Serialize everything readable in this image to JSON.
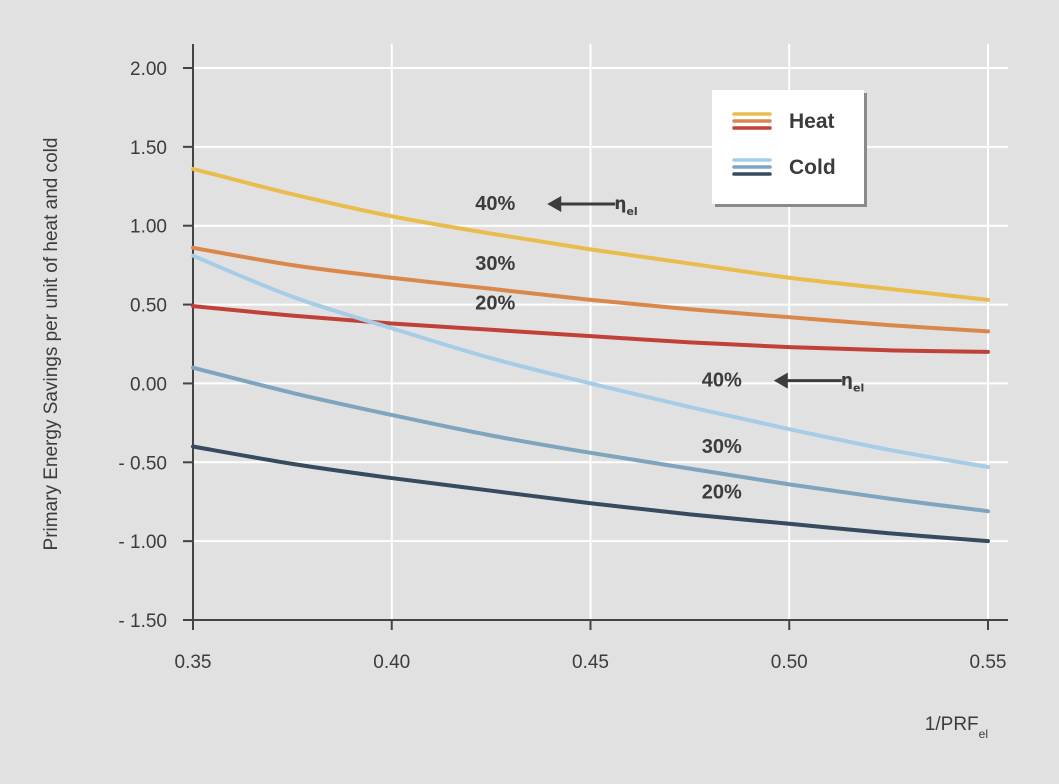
{
  "chart_data": {
    "type": "line",
    "title": "",
    "xlabel": "1/PRF",
    "xlabel_sub": "el",
    "ylabel": "Primary Energy Savings per unit of heat and cold",
    "xlim": [
      0.35,
      0.55
    ],
    "ylim": [
      -1.5,
      2.0
    ],
    "x_ticks": [
      0.35,
      0.4,
      0.45,
      0.5,
      0.55
    ],
    "x_tick_labels": [
      "0.35",
      "0.40",
      "0.45",
      "0.50",
      "0.55"
    ],
    "y_ticks": [
      2.0,
      1.5,
      1.0,
      0.5,
      0.0,
      -0.5,
      -1.0,
      -1.5
    ],
    "y_tick_labels": [
      "2.00",
      "1.50",
      "1.00",
      "0.50",
      "0.00",
      "- 0.50",
      "- 1.00",
      "- 1.50"
    ],
    "grid": true,
    "x": [
      0.35,
      0.375,
      0.4,
      0.425,
      0.45,
      0.475,
      0.5,
      0.525,
      0.55
    ],
    "series": [
      {
        "name": "Heat 40%",
        "group": "Heat",
        "eta_el": "40%",
        "color": "#e8bd4e",
        "values": [
          1.36,
          1.2,
          1.06,
          0.95,
          0.85,
          0.76,
          0.67,
          0.6,
          0.53
        ]
      },
      {
        "name": "Heat 30%",
        "group": "Heat",
        "eta_el": "30%",
        "color": "#d9874a",
        "values": [
          0.86,
          0.75,
          0.67,
          0.6,
          0.53,
          0.47,
          0.42,
          0.37,
          0.33
        ]
      },
      {
        "name": "Heat 20%",
        "group": "Heat",
        "eta_el": "20%",
        "color": "#c0413a",
        "values": [
          0.49,
          0.43,
          0.38,
          0.34,
          0.3,
          0.26,
          0.23,
          0.21,
          0.2
        ]
      },
      {
        "name": "Cold 40%",
        "group": "Cold",
        "eta_el": "40%",
        "color": "#a6cce6",
        "values": [
          0.81,
          0.55,
          0.35,
          0.16,
          0.0,
          -0.15,
          -0.29,
          -0.42,
          -0.53
        ]
      },
      {
        "name": "Cold 30%",
        "group": "Cold",
        "eta_el": "30%",
        "color": "#7fa4bd",
        "values": [
          0.1,
          -0.06,
          -0.2,
          -0.33,
          -0.44,
          -0.54,
          -0.64,
          -0.73,
          -0.81
        ]
      },
      {
        "name": "Cold 20%",
        "group": "Cold",
        "eta_el": "20%",
        "color": "#364a60",
        "values": [
          -0.4,
          -0.51,
          -0.6,
          -0.68,
          -0.76,
          -0.83,
          -0.89,
          -0.95,
          -1.0
        ]
      }
    ],
    "annotations": [
      {
        "text": "40%",
        "x": 0.421,
        "y": 1.1,
        "arrow": true,
        "eta_text": "η",
        "eta_sub": "el",
        "eta_x": 0.456
      },
      {
        "text": "30%",
        "x": 0.421,
        "y": 0.72,
        "arrow": false
      },
      {
        "text": "20%",
        "x": 0.421,
        "y": 0.47,
        "arrow": false
      },
      {
        "text": "40%",
        "x": 0.478,
        "y": -0.02,
        "arrow": true,
        "eta_text": "η",
        "eta_sub": "el",
        "eta_x": 0.513
      },
      {
        "text": "30%",
        "x": 0.478,
        "y": -0.44,
        "arrow": false
      },
      {
        "text": "20%",
        "x": 0.478,
        "y": -0.73,
        "arrow": false
      }
    ],
    "legend": {
      "position": "top-right",
      "entries": [
        {
          "label": "Heat",
          "colors": [
            "#e8bd4e",
            "#d9874a",
            "#c0413a"
          ]
        },
        {
          "label": "Cold",
          "colors": [
            "#a6cce6",
            "#7fa4bd",
            "#364a60"
          ]
        }
      ]
    }
  }
}
